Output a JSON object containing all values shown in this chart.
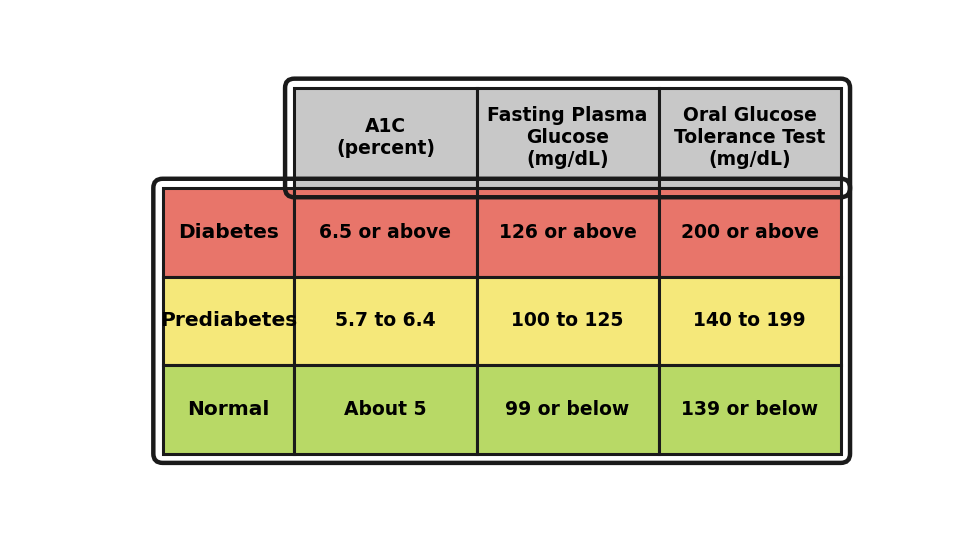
{
  "header_color": "#c8c8c8",
  "row_colors": [
    "#e8756a",
    "#f5e87a",
    "#b8d966"
  ],
  "border_color": "#1a1a1a",
  "text_color": "#000000",
  "bg_color": "#ffffff",
  "headers": [
    "A1C\n(percent)",
    "Fasting Plasma\nGlucose\n(mg/dL)",
    "Oral Glucose\nTolerance Test\n(mg/dL)"
  ],
  "row_labels": [
    "Diabetes",
    "Prediabetes",
    "Normal"
  ],
  "cell_data": [
    [
      "6.5 or above",
      "126 or above",
      "200 or above"
    ],
    [
      "5.7 to 6.4",
      "100 to 125",
      "140 to 199"
    ],
    [
      "About 5",
      "99 or below",
      "139 or below"
    ]
  ],
  "header_fontsize": 13.5,
  "cell_fontsize": 13.5,
  "label_fontsize": 14.5,
  "fig_width": 9.6,
  "fig_height": 5.4,
  "dpi": 100
}
